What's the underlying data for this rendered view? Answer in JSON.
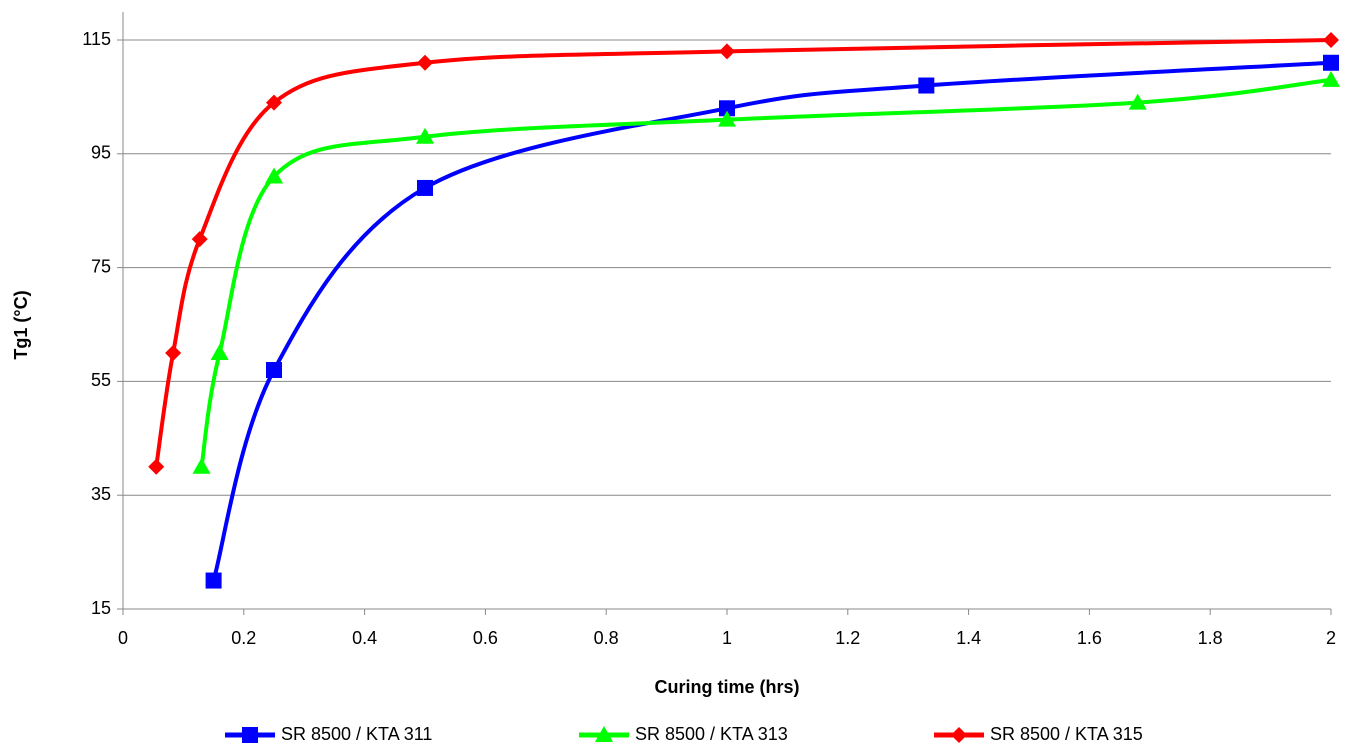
{
  "chart_data": {
    "type": "line",
    "x_label": "Curing time (hrs)",
    "y_label": "Tg1 (°C)",
    "xlim": [
      0,
      2
    ],
    "xticks": [
      0,
      0.2,
      0.4,
      0.6,
      0.8,
      1,
      1.2,
      1.4,
      1.6,
      1.8,
      2
    ],
    "ylim": [
      15,
      115
    ],
    "yticks": [
      15,
      35,
      55,
      75,
      95,
      115
    ],
    "grid": true,
    "smooth": true,
    "legend": "bottom",
    "series": [
      {
        "name": "SR 8500 / KTA 311",
        "color": "#0000ff",
        "marker": "square",
        "x": [
          0.15,
          0.25,
          0.5,
          1,
          1.33,
          2
        ],
        "values": [
          20,
          57,
          89,
          103,
          107,
          111
        ]
      },
      {
        "name": "SR 8500 / KTA 313",
        "color": "#00ff00",
        "marker": "triangle",
        "x": [
          0.13,
          0.16,
          0.25,
          0.5,
          1,
          1.68,
          2
        ],
        "values": [
          40,
          60,
          91,
          98,
          101,
          104,
          108
        ]
      },
      {
        "name": "SR 8500 / KTA 315",
        "color": "#ff0000",
        "marker": "diamond",
        "x": [
          0.055,
          0.083,
          0.127,
          0.25,
          0.5,
          1,
          2
        ],
        "values": [
          40,
          60,
          80,
          104,
          111,
          113,
          115
        ]
      }
    ]
  }
}
